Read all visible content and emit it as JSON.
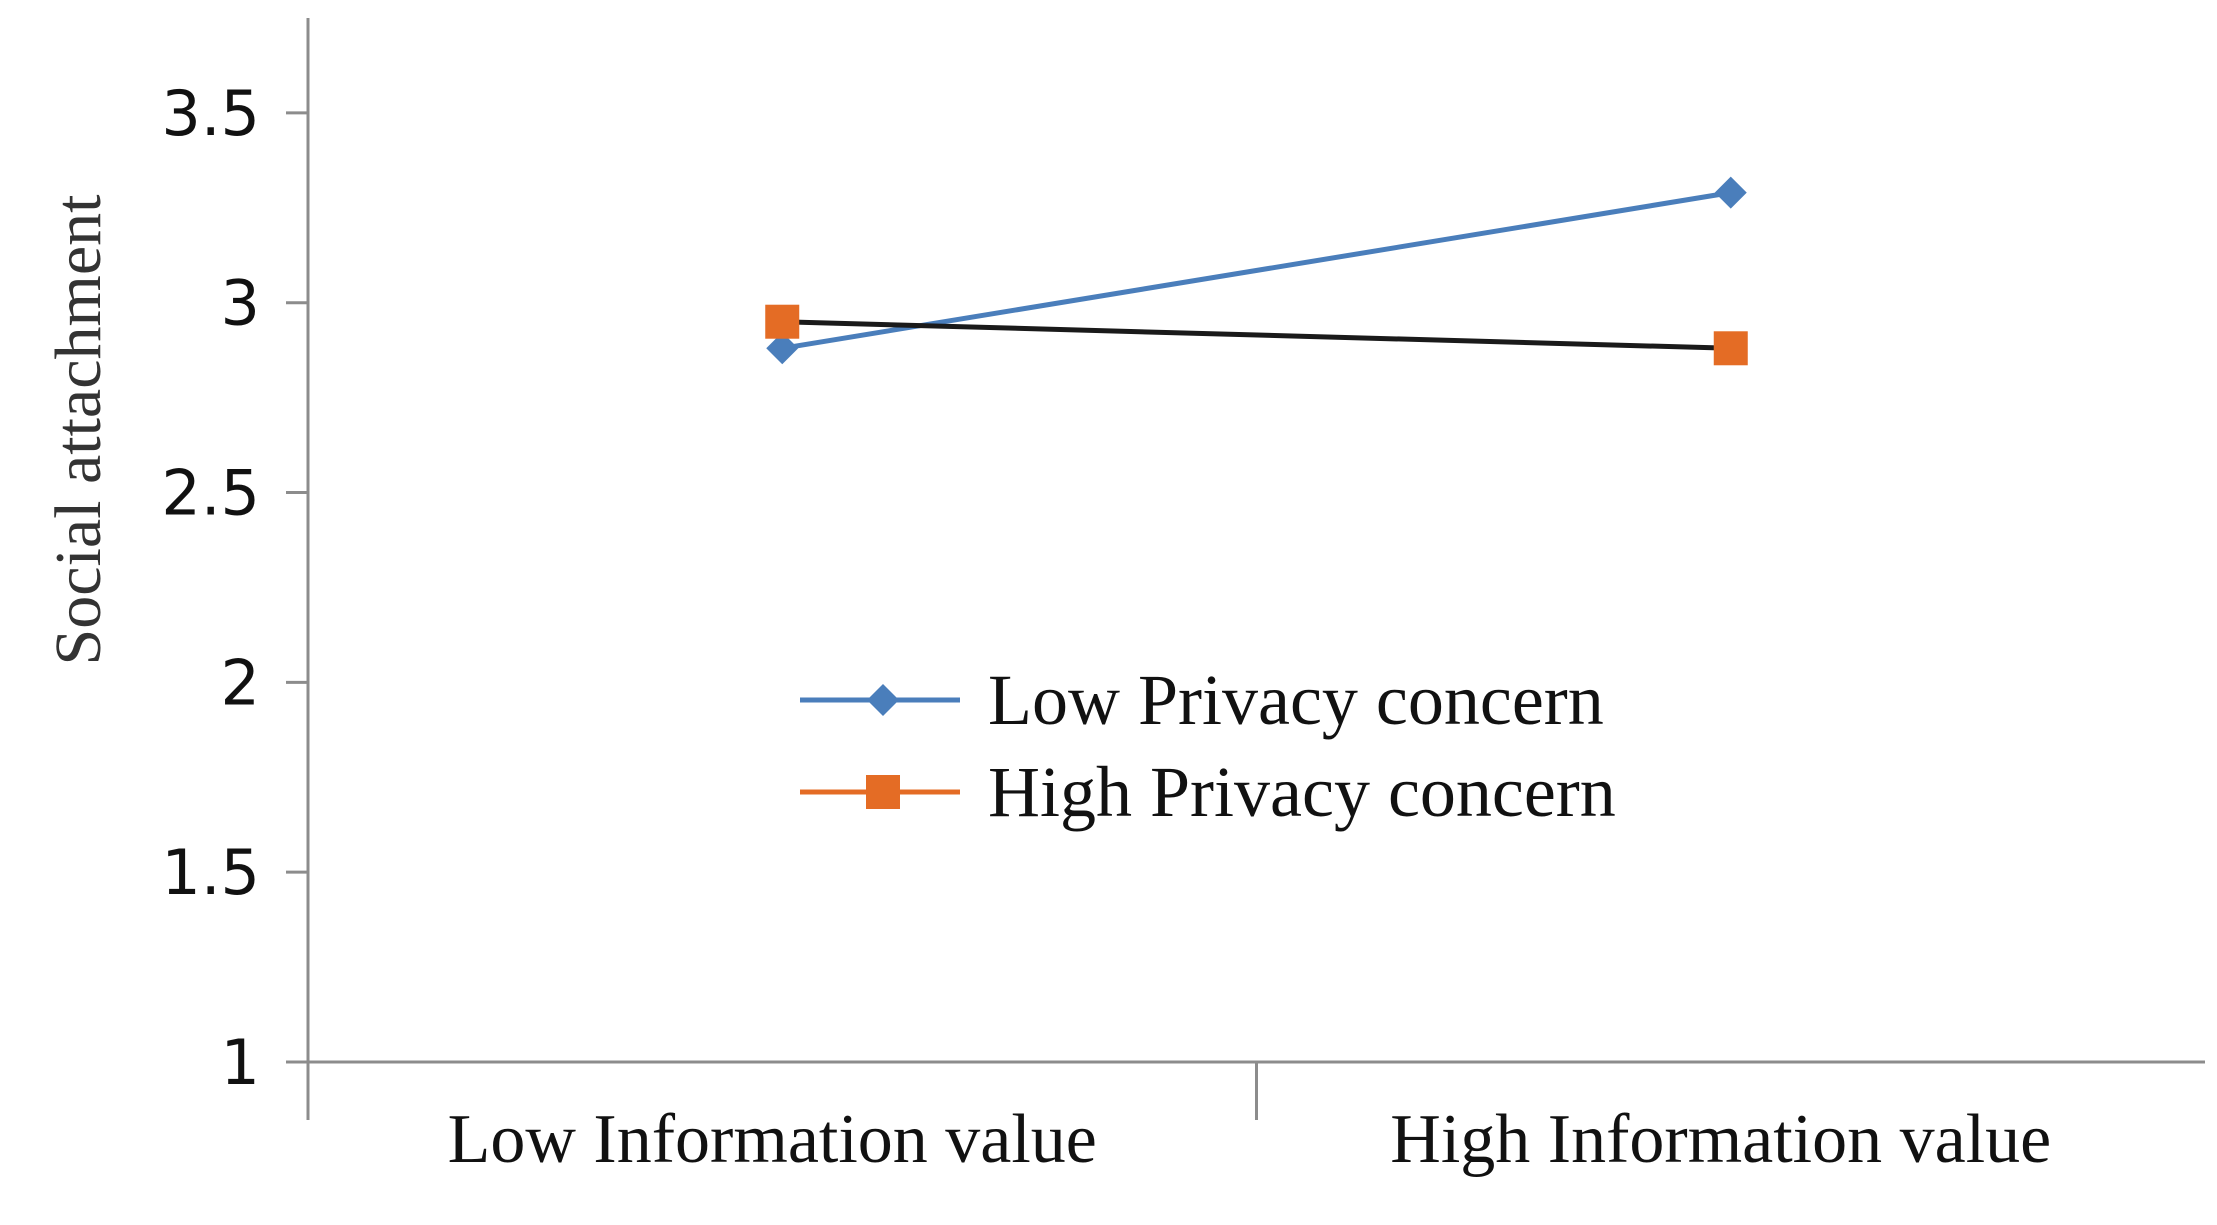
{
  "chart_data": {
    "type": "line",
    "categories": [
      "Low Information value",
      "High Information value"
    ],
    "series": [
      {
        "name": "Low Privacy concern",
        "values": [
          2.88,
          3.29
        ],
        "color": "#4a7ebb",
        "line_color": "#4a7ebb",
        "marker": "diamond"
      },
      {
        "name": "High Privacy concern",
        "values": [
          2.95,
          2.88
        ],
        "color": "#e46c25",
        "line_color": "#1a1a1a",
        "marker": "square"
      }
    ],
    "ylabel": "Social attachment",
    "xlabel": "",
    "ylim": [
      1,
      3.75
    ],
    "yticks": [
      1,
      1.5,
      2,
      2.5,
      3,
      3.5
    ],
    "ytick_labels": [
      "1",
      "1.5",
      "2",
      "2.5",
      "3",
      "3.5"
    ],
    "grid": false,
    "legend_position": "center"
  }
}
